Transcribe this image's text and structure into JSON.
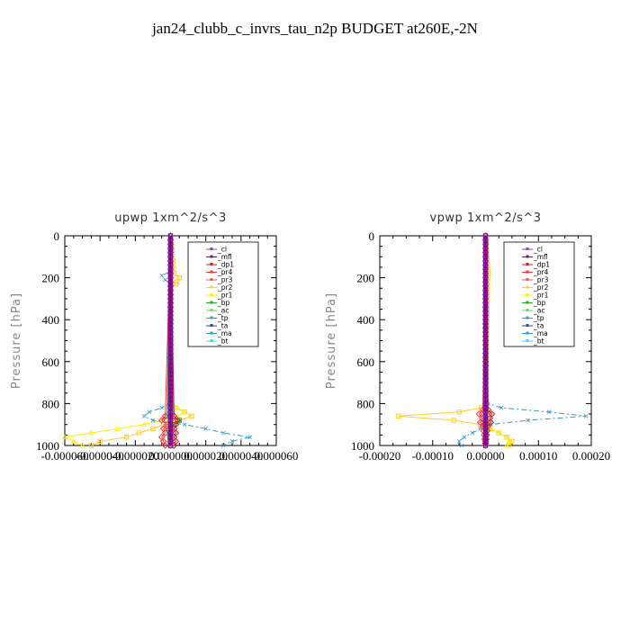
{
  "title": "jan24_clubb_c_invrs_tau_n2p  BUDGET at260E,-2N",
  "chart_data": [
    {
      "type": "line",
      "title": "upwp   1xm^2/s^3",
      "ylabel": "Pressure [hPa]",
      "xlim": [
        -6e-05,
        6e-05
      ],
      "ylim": [
        1000,
        0
      ],
      "x_ticks": [
        "-0.000060",
        "-0.000040",
        "-0.000020",
        "0.000000",
        "0.000020",
        "0.000040",
        "0.000060"
      ],
      "x_tick_values": [
        -6e-05,
        -4e-05,
        -2e-05,
        0,
        2e-05,
        4e-05,
        6e-05
      ],
      "y_ticks": [
        "0",
        "200",
        "400",
        "600",
        "800",
        "1000"
      ],
      "y_tick_values": [
        0,
        200,
        400,
        600,
        800,
        1000
      ],
      "legend": [
        "_cl",
        "_mfl",
        "_dp1",
        "_pr4",
        "_pr3",
        "_pr2",
        "_pr1",
        "_bp",
        "_ac",
        "_tp",
        "_ta",
        "_ma",
        "_bt"
      ],
      "legend_position": "top-right",
      "series": [
        {
          "name": "_pr2",
          "color": "#ffcc33",
          "dash": "",
          "marker": "square",
          "p": [
            0,
            180,
            200,
            230,
            250,
            800,
            820,
            840,
            860,
            880,
            900,
            920,
            940,
            960,
            980,
            1000
          ],
          "x": [
            0,
            2e-06,
            5e-06,
            3e-06,
            0,
            0,
            2e-06,
            8e-06,
            1.2e-05,
            5e-06,
            -4e-06,
            -1e-05,
            -1.8e-05,
            -2.5e-05,
            -4e-05,
            -4.5e-05
          ]
        },
        {
          "name": "_pr1",
          "color": "#ffee00",
          "dash": "",
          "marker": "triangle",
          "p": [
            0,
            800,
            820,
            840,
            860,
            880,
            900,
            920,
            940,
            960,
            980,
            1000
          ],
          "x": [
            0,
            0,
            4e-06,
            8e-06,
            4e-06,
            -5e-06,
            -1.5e-05,
            -3e-05,
            -4.5e-05,
            -6e-05,
            -5.5e-05,
            -5e-05
          ]
        },
        {
          "name": "_tp",
          "color": "#3399cc",
          "dash": "6,3,2,3",
          "marker": "x",
          "p": [
            0,
            170,
            190,
            210,
            230,
            800,
            820,
            840,
            860,
            880,
            900,
            920,
            940,
            960,
            980,
            1000
          ],
          "x": [
            0,
            0,
            -5e-06,
            -3e-06,
            0,
            0,
            -5e-06,
            -1.2e-05,
            -1.5e-05,
            -1e-05,
            8e-06,
            2e-05,
            3e-05,
            4.5e-05,
            3.5e-05,
            3e-05
          ]
        },
        {
          "name": "_ac",
          "color": "#66dd66",
          "dash": "",
          "marker": "",
          "p": [
            0,
            860,
            880,
            900,
            920,
            940,
            1000
          ],
          "x": [
            0,
            2e-06,
            6e-06,
            4e-06,
            2e-06,
            0,
            0
          ]
        },
        {
          "name": "_bp",
          "color": "#22aa22",
          "dash": "",
          "marker": "square",
          "p": [
            0,
            860,
            880,
            900,
            920,
            1000
          ],
          "x": [
            0,
            -2e-06,
            5e-06,
            2e-06,
            -1e-06,
            0
          ]
        },
        {
          "name": "_pr3",
          "color": "#ff3333",
          "dash": "",
          "marker": "diamond",
          "p": [
            0,
            860,
            880,
            900,
            920,
            940,
            960,
            980,
            1000
          ],
          "x": [
            0,
            -3e-06,
            -5e-06,
            -2e-06,
            -4e-06,
            -3e-06,
            -5e-06,
            -4e-06,
            -3e-06
          ]
        },
        {
          "name": "_dp1",
          "color": "#cc2222",
          "dash": "",
          "marker": "diamond",
          "p": [
            0,
            860,
            880,
            900,
            920,
            940,
            960,
            980,
            1000
          ],
          "x": [
            0,
            2e-06,
            4e-06,
            3e-06,
            2e-06,
            3e-06,
            2e-06,
            3e-06,
            2e-06
          ]
        },
        {
          "name": "_cl",
          "color": "#8844cc",
          "dash": "",
          "marker": "diamond",
          "p": [
            0,
            1000
          ],
          "x": [
            0,
            0
          ]
        },
        {
          "name": "_mfl",
          "color": "#880088",
          "dash": "",
          "marker": "square",
          "p": [
            0,
            1000
          ],
          "x": [
            0,
            0
          ]
        }
      ]
    },
    {
      "type": "line",
      "title": "vpwp   1xm^2/s^3",
      "ylabel": "Pressure [hPa]",
      "xlim": [
        -0.0002,
        0.0002
      ],
      "ylim": [
        1000,
        0
      ],
      "x_ticks": [
        "-0.00020",
        "-0.00010",
        "0.00000",
        "0.00010",
        "0.00020"
      ],
      "x_tick_values": [
        -0.0002,
        -0.0001,
        0,
        0.0001,
        0.0002
      ],
      "y_ticks": [
        "0",
        "200",
        "400",
        "600",
        "800",
        "1000"
      ],
      "y_tick_values": [
        0,
        200,
        400,
        600,
        800,
        1000
      ],
      "legend": [
        "_cl",
        "_mfl",
        "_dp1",
        "_pr4",
        "_pr3",
        "_pr2",
        "_pr1",
        "_bp",
        "_ac",
        "_tp",
        "_ta",
        "_ma",
        "_bt"
      ],
      "legend_position": "top-right",
      "series": [
        {
          "name": "_pr2",
          "color": "#ffcc33",
          "dash": "",
          "marker": "square",
          "p": [
            0,
            180,
            220,
            800,
            820,
            840,
            860,
            880,
            900,
            920,
            940,
            960,
            980,
            1000
          ],
          "x": [
            0,
            5e-06,
            4e-06,
            0,
            -8e-06,
            -5e-05,
            -0.000165,
            -6e-05,
            -1e-05,
            8e-06,
            2.5e-05,
            4e-05,
            5e-05,
            4.5e-05
          ]
        },
        {
          "name": "_pr1",
          "color": "#ffee00",
          "dash": "",
          "marker": "triangle",
          "p": [
            0,
            900,
            920,
            940,
            960,
            980,
            1000
          ],
          "x": [
            0,
            5e-06,
            1e-05,
            2.5e-05,
            4e-05,
            4.5e-05,
            4e-05
          ]
        },
        {
          "name": "_tp",
          "color": "#3399cc",
          "dash": "6,3,2,3",
          "marker": "x",
          "p": [
            0,
            800,
            820,
            840,
            860,
            880,
            900,
            920,
            940,
            960,
            980,
            1000
          ],
          "x": [
            0,
            5e-06,
            3e-05,
            0.00012,
            0.00019,
            8e-05,
            1e-05,
            -1e-05,
            -2.5e-05,
            -4e-05,
            -5e-05,
            -4.5e-05
          ]
        },
        {
          "name": "_ac",
          "color": "#66dd66",
          "dash": "",
          "marker": "",
          "p": [
            0,
            900,
            940,
            980,
            1000
          ],
          "x": [
            0,
            3e-06,
            5e-06,
            3e-06,
            2e-06
          ]
        },
        {
          "name": "_pr3",
          "color": "#ff3333",
          "dash": "",
          "marker": "diamond",
          "p": [
            0,
            830,
            850,
            870,
            890,
            910,
            1000
          ],
          "x": [
            0,
            -5e-06,
            -1.2e-05,
            -6e-06,
            -1e-05,
            -5e-06,
            0
          ]
        },
        {
          "name": "_dp1",
          "color": "#cc2222",
          "dash": "",
          "marker": "diamond",
          "p": [
            0,
            830,
            850,
            870,
            890,
            910,
            1000
          ],
          "x": [
            0,
            5e-06,
            1.2e-05,
            8e-06,
            1e-05,
            4e-06,
            0
          ]
        },
        {
          "name": "_cl",
          "color": "#8844cc",
          "dash": "",
          "marker": "diamond",
          "p": [
            0,
            1000
          ],
          "x": [
            0,
            0
          ]
        },
        {
          "name": "_mfl",
          "color": "#880088",
          "dash": "",
          "marker": "square",
          "p": [
            0,
            1000
          ],
          "x": [
            0,
            0
          ]
        }
      ]
    }
  ]
}
